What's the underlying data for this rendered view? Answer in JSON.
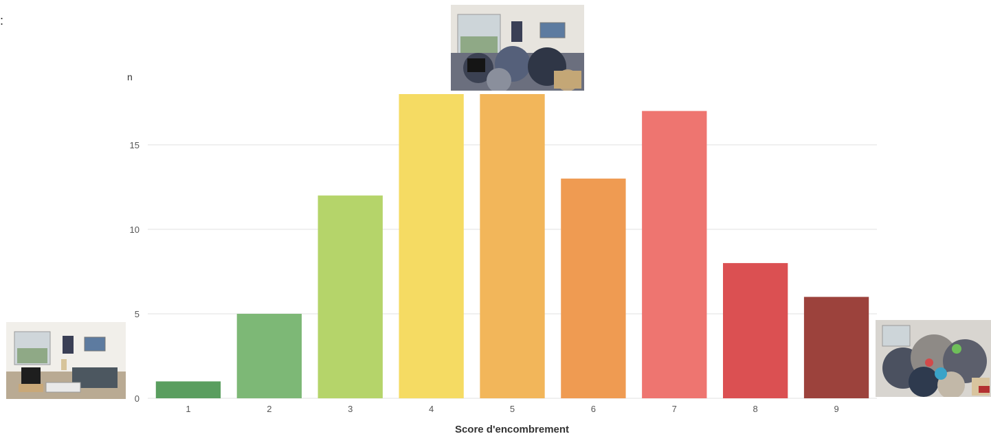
{
  "intro_text_fragment": ":",
  "chart_data": {
    "type": "bar",
    "categories": [
      "1",
      "2",
      "3",
      "4",
      "5",
      "6",
      "7",
      "8",
      "9"
    ],
    "values": [
      1,
      5,
      12,
      18,
      18,
      13,
      17,
      8,
      6
    ],
    "colors": [
      "#5a9e5f",
      "#7db876",
      "#b5d46a",
      "#f5db63",
      "#f2b65a",
      "#ef9b52",
      "#ee7570",
      "#db5052",
      "#9c423c"
    ],
    "ylabel": "n",
    "xlabel": "Score d'encombrement",
    "ylim": [
      0,
      18
    ],
    "yticks": [
      0,
      5,
      10,
      15
    ],
    "grid": true
  },
  "photos": [
    {
      "name": "photo-tidy-room",
      "description_icon": "living-room-photo"
    },
    {
      "name": "photo-medium-clutter",
      "description_icon": "cluttered-room-photo"
    },
    {
      "name": "photo-heavy-clutter",
      "description_icon": "very-cluttered-room-photo"
    }
  ]
}
